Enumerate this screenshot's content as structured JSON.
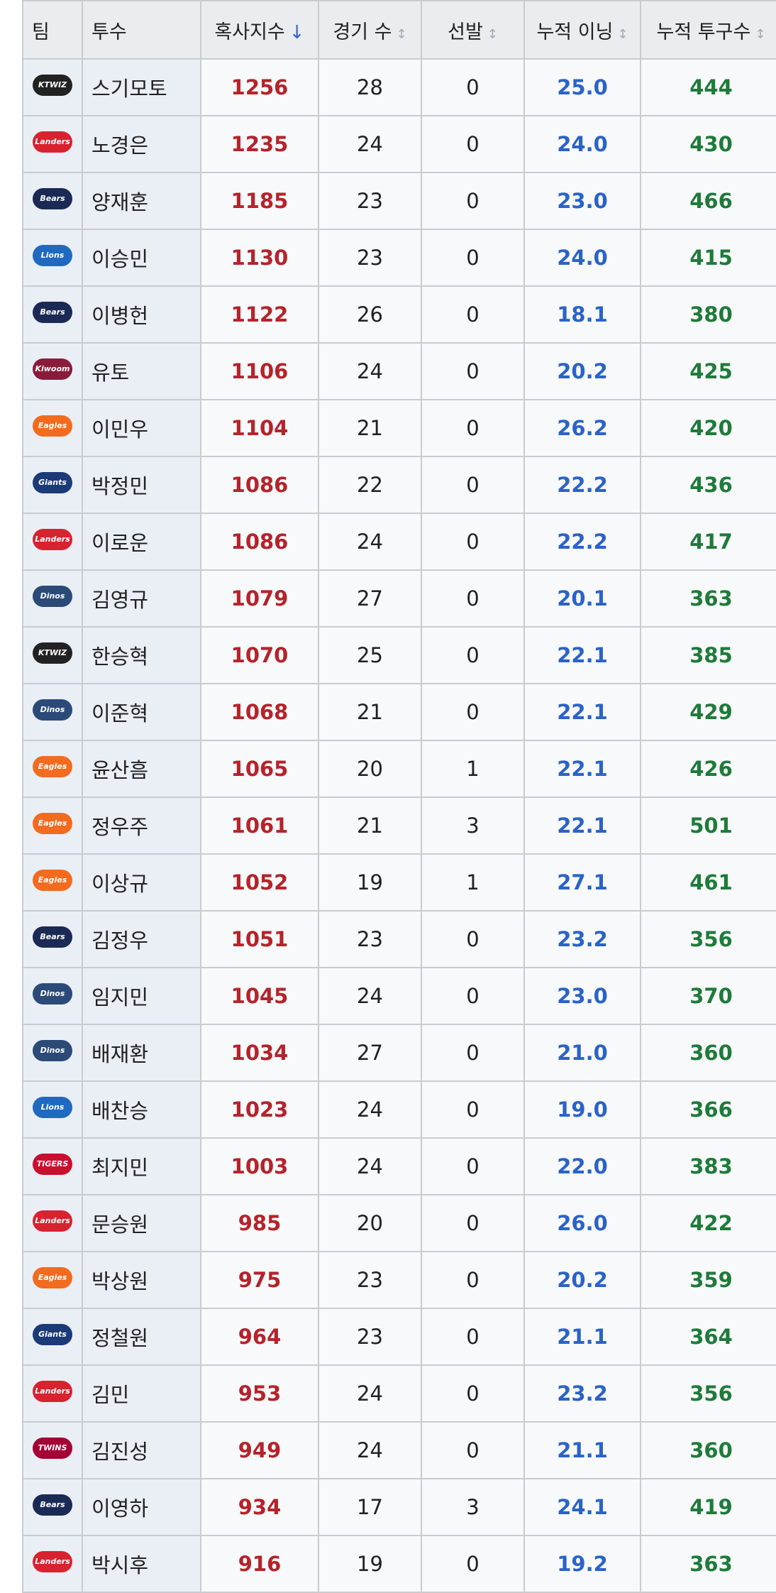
{
  "table": {
    "headers": [
      "팀",
      "투수",
      "혹사지수",
      "경기 수",
      "선발",
      "누적 이닝",
      "누적 투구수"
    ],
    "rows": [
      [
        {
          "text": "KTWIZ",
          "color": "#222222"
        },
        "스기모토",
        "1256",
        "28",
        "0",
        "25.0",
        "444"
      ],
      [
        {
          "text": "Landers",
          "color": "#d8222f"
        },
        "노경은",
        "1235",
        "24",
        "0",
        "24.0",
        "430"
      ],
      [
        {
          "text": "Bears",
          "color": "#1a2a55"
        },
        "양재훈",
        "1185",
        "23",
        "0",
        "23.0",
        "466"
      ],
      [
        {
          "text": "Lions",
          "color": "#1f6ac0"
        },
        "이승민",
        "1130",
        "23",
        "0",
        "24.0",
        "415"
      ],
      [
        {
          "text": "Bears",
          "color": "#1a2a55"
        },
        "이병헌",
        "1122",
        "26",
        "0",
        "18.1",
        "380"
      ],
      [
        {
          "text": "Kiwoom",
          "color": "#8a1b3a"
        },
        "유토",
        "1106",
        "24",
        "0",
        "20.2",
        "425"
      ],
      [
        {
          "text": "Eagles",
          "color": "#f26b1f"
        },
        "이민우",
        "1104",
        "21",
        "0",
        "26.2",
        "420"
      ],
      [
        {
          "text": "Giants",
          "color": "#1b3a78"
        },
        "박정민",
        "1086",
        "22",
        "0",
        "22.2",
        "436"
      ],
      [
        {
          "text": "Landers",
          "color": "#d8222f"
        },
        "이로운",
        "1086",
        "24",
        "0",
        "22.2",
        "417"
      ],
      [
        {
          "text": "Dinos",
          "color": "#2b4a78"
        },
        "김영규",
        "1079",
        "27",
        "0",
        "20.1",
        "363"
      ],
      [
        {
          "text": "KTWIZ",
          "color": "#222222"
        },
        "한승혁",
        "1070",
        "25",
        "0",
        "22.1",
        "385"
      ],
      [
        {
          "text": "Dinos",
          "color": "#2b4a78"
        },
        "이준혁",
        "1068",
        "21",
        "0",
        "22.1",
        "429"
      ],
      [
        {
          "text": "Eagles",
          "color": "#f26b1f"
        },
        "윤산흠",
        "1065",
        "20",
        "1",
        "22.1",
        "426"
      ],
      [
        {
          "text": "Eagles",
          "color": "#f26b1f"
        },
        "정우주",
        "1061",
        "21",
        "3",
        "22.1",
        "501"
      ],
      [
        {
          "text": "Eagles",
          "color": "#f26b1f"
        },
        "이상규",
        "1052",
        "19",
        "1",
        "27.1",
        "461"
      ],
      [
        {
          "text": "Bears",
          "color": "#1a2a55"
        },
        "김정우",
        "1051",
        "23",
        "0",
        "23.2",
        "356"
      ],
      [
        {
          "text": "Dinos",
          "color": "#2b4a78"
        },
        "임지민",
        "1045",
        "24",
        "0",
        "23.0",
        "370"
      ],
      [
        {
          "text": "Dinos",
          "color": "#2b4a78"
        },
        "배재환",
        "1034",
        "27",
        "0",
        "21.0",
        "360"
      ],
      [
        {
          "text": "Lions",
          "color": "#1f6ac0"
        },
        "배찬승",
        "1023",
        "24",
        "0",
        "19.0",
        "366"
      ],
      [
        {
          "text": "TIGERS",
          "color": "#c8102e"
        },
        "최지민",
        "1003",
        "24",
        "0",
        "22.0",
        "383"
      ],
      [
        {
          "text": "Landers",
          "color": "#d8222f"
        },
        "문승원",
        "985",
        "20",
        "0",
        "26.0",
        "422"
      ],
      [
        {
          "text": "Eagles",
          "color": "#f26b1f"
        },
        "박상원",
        "975",
        "23",
        "0",
        "20.2",
        "359"
      ],
      [
        {
          "text": "Giants",
          "color": "#1b3a78"
        },
        "정철원",
        "964",
        "23",
        "0",
        "21.1",
        "364"
      ],
      [
        {
          "text": "Landers",
          "color": "#d8222f"
        },
        "김민",
        "953",
        "24",
        "0",
        "23.2",
        "356"
      ],
      [
        {
          "text": "TWINS",
          "color": "#a50034"
        },
        "김진성",
        "949",
        "24",
        "0",
        "21.1",
        "360"
      ],
      [
        {
          "text": "Bears",
          "color": "#1a2a55"
        },
        "이영하",
        "934",
        "17",
        "3",
        "24.1",
        "419"
      ],
      [
        {
          "text": "Landers",
          "color": "#d8222f"
        },
        "박시후",
        "916",
        "19",
        "0",
        "19.2",
        "363"
      ]
    ]
  }
}
